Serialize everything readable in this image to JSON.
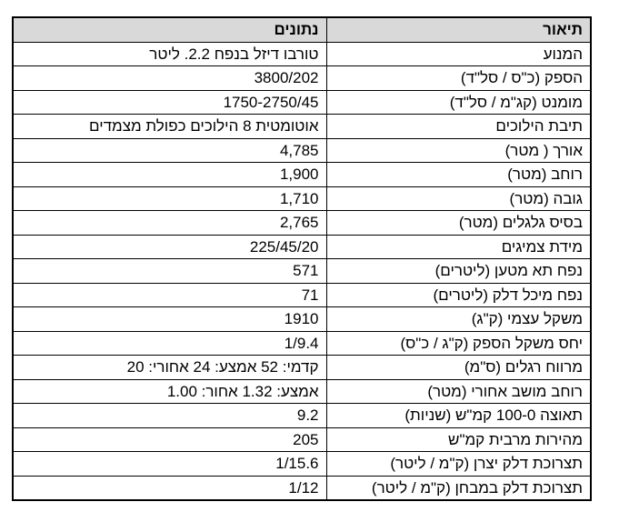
{
  "table": {
    "header": [
      "תיאור",
      "נתונים"
    ],
    "rows": [
      [
        "המנוע",
        "טורבו דיזל בנפח 2.2. ליטר"
      ],
      [
        "הספק (כ\"ס / סל\"ד)",
        "3800/202"
      ],
      [
        "מומנט (קג\"מ / סל\"ד)",
        "1750-2750/45"
      ],
      [
        "תיבת הילוכים",
        "אוטומטית 8 הילוכים כפולת מצמדים"
      ],
      [
        "אורך ( מטר)",
        "4,785"
      ],
      [
        "רוחב (מטר)",
        "1,900"
      ],
      [
        "גובה (מטר)",
        "1,710"
      ],
      [
        "בסיס גלגלים (מטר)",
        "2,765"
      ],
      [
        "מידת צמיגים",
        "225/45/20"
      ],
      [
        "נפח תא מטען (ליטרים)",
        "571"
      ],
      [
        "נפח מיכל דלק (ליטרים)",
        "71"
      ],
      [
        "משקל עצמי (ק\"ג)",
        "1910"
      ],
      [
        "יחס משקל הספק (ק\"ג / כ\"ס)",
        "1/9.4"
      ],
      [
        "מרווח רגלים (ס\"מ)",
        "קדמי: 52 אמצע: 24 אחורי: 20"
      ],
      [
        "רוחב מושב אחורי (מטר)",
        "אמצע: 1.32 אחור: 1.00"
      ],
      [
        "תאוצה 100-0  קמ\"ש (שניות)",
        "9.2"
      ],
      [
        "מהירות מרבית קמ\"ש",
        "205"
      ],
      [
        "תצרוכת דלק יצרן    (ק\"מ / ליטר)",
        "1/15.6"
      ],
      [
        "תצרוכת דלק במבחן (ק\"מ / ליטר)",
        "1/12"
      ]
    ]
  }
}
